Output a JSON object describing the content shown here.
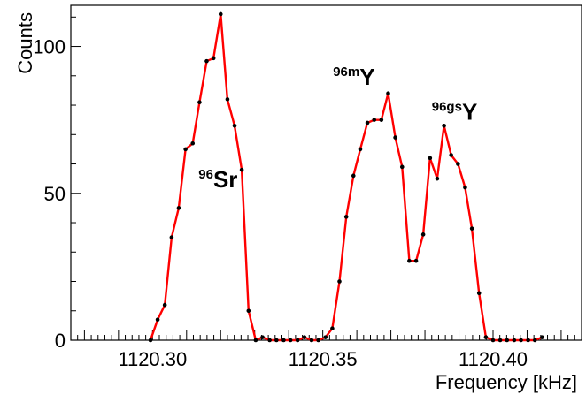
{
  "chart_data": {
    "type": "line",
    "xlabel": "Frequency [kHz]",
    "ylabel": "Counts",
    "xlim": [
      1120.276,
      1120.426
    ],
    "ylim": [
      0,
      114
    ],
    "x_ticks": [
      "1120.30",
      "1120.35",
      "1120.40"
    ],
    "y_ticks": [
      "0",
      "50",
      "100"
    ],
    "grid": false,
    "line_color": "#ff0000",
    "marker_color": "#000000",
    "series": [
      {
        "points": [
          [
            1120.2994,
            0
          ],
          [
            1120.3015,
            7
          ],
          [
            1120.3036,
            12
          ],
          [
            1120.3056,
            35
          ],
          [
            1120.3077,
            45
          ],
          [
            1120.3097,
            65
          ],
          [
            1120.3118,
            67
          ],
          [
            1120.3138,
            81
          ],
          [
            1120.3159,
            95
          ],
          [
            1120.3179,
            96
          ],
          [
            1120.32,
            111
          ],
          [
            1120.322,
            82
          ],
          [
            1120.3241,
            73
          ],
          [
            1120.3262,
            58
          ],
          [
            1120.3282,
            10
          ],
          [
            1120.3303,
            0
          ],
          [
            1120.3323,
            1
          ],
          [
            1120.3344,
            0
          ],
          [
            1120.3364,
            0
          ],
          [
            1120.3385,
            0
          ],
          [
            1120.3405,
            0
          ],
          [
            1120.3426,
            0
          ],
          [
            1120.3446,
            1
          ],
          [
            1120.3467,
            0
          ],
          [
            1120.3487,
            0
          ],
          [
            1120.3508,
            1
          ],
          [
            1120.3528,
            4
          ],
          [
            1120.3549,
            20
          ],
          [
            1120.3569,
            42
          ],
          [
            1120.359,
            56
          ],
          [
            1120.361,
            65
          ],
          [
            1120.3631,
            74
          ],
          [
            1120.3651,
            75
          ],
          [
            1120.3672,
            75
          ],
          [
            1120.3692,
            84
          ],
          [
            1120.3713,
            69
          ],
          [
            1120.3733,
            59
          ],
          [
            1120.3754,
            27
          ],
          [
            1120.3774,
            27
          ],
          [
            1120.3795,
            36
          ],
          [
            1120.3815,
            62
          ],
          [
            1120.3836,
            55
          ],
          [
            1120.3856,
            73
          ],
          [
            1120.3877,
            63
          ],
          [
            1120.3897,
            60
          ],
          [
            1120.3918,
            52
          ],
          [
            1120.3938,
            38
          ],
          [
            1120.3959,
            16
          ],
          [
            1120.3979,
            1
          ],
          [
            1120.4,
            0
          ],
          [
            1120.4021,
            0
          ],
          [
            1120.4041,
            0
          ],
          [
            1120.4062,
            0
          ],
          [
            1120.4082,
            0
          ],
          [
            1120.4103,
            0
          ],
          [
            1120.4123,
            0
          ],
          [
            1120.4144,
            1
          ]
        ]
      }
    ],
    "annotations": [
      {
        "sup": "96",
        "text": "Sr",
        "x": 1120.3135,
        "y": 52
      },
      {
        "sup": "96m",
        "text": "Y",
        "x": 1120.353,
        "y": 87
      },
      {
        "sup": "96gs",
        "text": "Y",
        "x": 1120.382,
        "y": 75
      }
    ]
  }
}
